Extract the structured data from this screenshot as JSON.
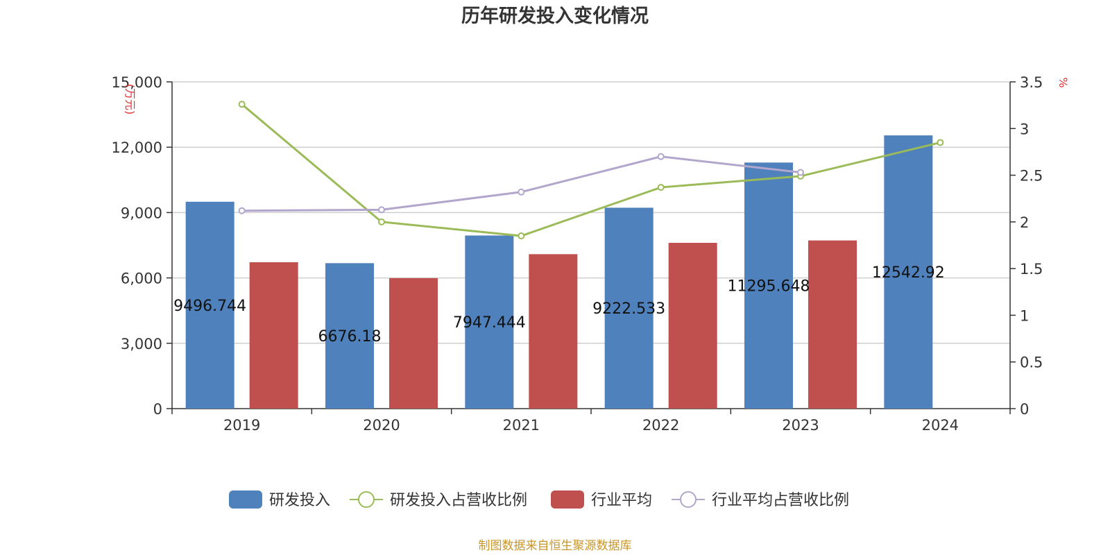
{
  "chart_data": {
    "type": "bar",
    "title": "历年研发投入变化情况",
    "categories": [
      "2019",
      "2020",
      "2021",
      "2022",
      "2023",
      "2024"
    ],
    "y_left": {
      "unit": "(万元)",
      "ticks": [
        "0",
        "3,000",
        "6,000",
        "9,000",
        "12,000",
        "15,000"
      ],
      "range": [
        0,
        15000
      ]
    },
    "y_right": {
      "unit": "%",
      "ticks": [
        "0",
        "0.5",
        "1",
        "1.5",
        "2",
        "2.5",
        "3",
        "3.5"
      ],
      "range": [
        0,
        3.5
      ]
    },
    "series": [
      {
        "name": "研发投入",
        "kind": "bar",
        "axis": "left",
        "color": "#4f81bd",
        "values": [
          9496.744,
          6676.18,
          7947.444,
          9222.533,
          11295.648,
          12542.92
        ],
        "labels": [
          "9496.744",
          "6676.18",
          "7947.444",
          "9222.533",
          "11295.648",
          "12542.92"
        ]
      },
      {
        "name": "研发投入占营收比例",
        "kind": "line",
        "axis": "right",
        "color": "#9bbb59",
        "values": [
          3.26,
          2.0,
          1.85,
          2.37,
          2.49,
          2.85
        ]
      },
      {
        "name": "行业平均",
        "kind": "bar",
        "axis": "left",
        "color": "#c0504d",
        "values": [
          6720,
          5990,
          7090,
          7610,
          7720,
          null
        ]
      },
      {
        "name": "行业平均占营收比例",
        "kind": "line",
        "axis": "right",
        "color": "#b3a6cc",
        "values": [
          2.12,
          2.13,
          2.32,
          2.7,
          2.53,
          null
        ]
      }
    ],
    "grid": true,
    "legend_position": "bottom",
    "source": "制图数据来自恒生聚源数据库"
  }
}
